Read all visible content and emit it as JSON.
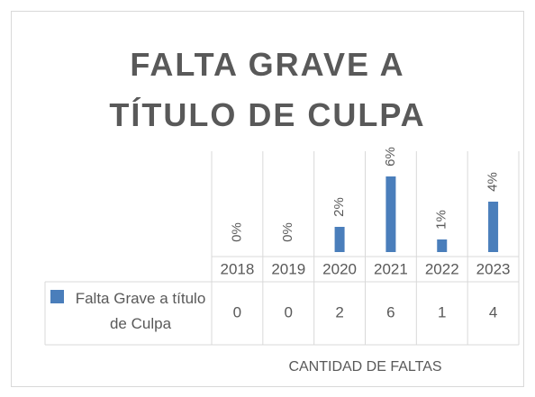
{
  "chart_data": {
    "type": "bar",
    "title": "FALTA GRAVE A TÍTULO DE CULPA",
    "categories": [
      "2018",
      "2019",
      "2020",
      "2021",
      "2022",
      "2023"
    ],
    "series": [
      {
        "name": "Falta Grave a título de Culpa",
        "color": "#4a7ebb",
        "values": [
          0,
          0,
          2,
          6,
          1,
          4
        ],
        "value_labels": [
          "0%",
          "0%",
          "2%",
          "6%",
          "1%",
          "4%"
        ]
      }
    ],
    "ylim": [
      0,
      8
    ],
    "x_axis_title": "CANTIDAD DE FALTAS",
    "data_table": true
  }
}
